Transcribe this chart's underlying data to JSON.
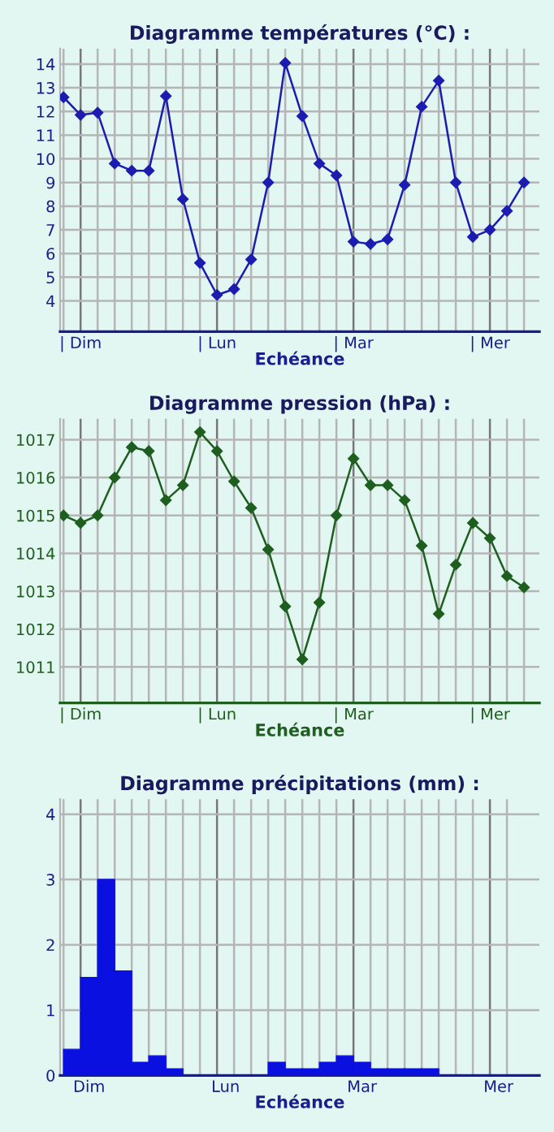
{
  "chart_data": [
    {
      "type": "line",
      "title": "Diagramme températures (°C) :",
      "xlabel": "Echéance",
      "categories": [
        null,
        "| Dim",
        null,
        null,
        null,
        null,
        null,
        null,
        null,
        "| Lun",
        null,
        null,
        null,
        null,
        null,
        null,
        null,
        "| Mar",
        null,
        null,
        null,
        null,
        null,
        null,
        null,
        "| Mer",
        null,
        null
      ],
      "series": [
        {
          "color": "#1c1cb0",
          "values": [
            12.6,
            11.85,
            11.95,
            9.8,
            9.5,
            9.5,
            12.65,
            8.3,
            5.6,
            4.25,
            4.5,
            5.75,
            9.0,
            14.05,
            11.8,
            9.8,
            9.3,
            6.5,
            6.4,
            6.6,
            8.9,
            12.2,
            13.3,
            9.0,
            6.7,
            7.0,
            7.8,
            9.0
          ]
        }
      ],
      "ylim": [
        2.7,
        14.65
      ],
      "yticks": [
        4,
        5,
        6,
        7,
        8,
        9,
        10,
        11,
        12,
        13,
        14
      ],
      "grid": true,
      "marker": "diamond",
      "line_style": "solid"
    },
    {
      "type": "line",
      "title": "Diagramme pression (hPa) :",
      "xlabel": "Echéance",
      "categories": [
        null,
        "| Dim",
        null,
        null,
        null,
        null,
        null,
        null,
        null,
        "| Lun",
        null,
        null,
        null,
        null,
        null,
        null,
        null,
        "| Mar",
        null,
        null,
        null,
        null,
        null,
        null,
        null,
        "| Mer",
        null,
        null
      ],
      "series": [
        {
          "color": "#1e5e1e",
          "values": [
            1015.0,
            1014.8,
            1015.0,
            1016.0,
            1016.8,
            1016.7,
            1015.4,
            1015.8,
            1017.2,
            1016.7,
            1015.9,
            1015.2,
            1014.1,
            1012.6,
            1011.2,
            1012.7,
            1015.0,
            1016.5,
            1015.8,
            1015.8,
            1015.4,
            1014.2,
            1012.4,
            1013.7,
            1014.8,
            1014.4,
            1013.4,
            1013.1
          ]
        }
      ],
      "ylim": [
        1010.05,
        1017.55
      ],
      "yticks": [
        1011,
        1012,
        1013,
        1014,
        1015,
        1016,
        1017
      ],
      "grid": true,
      "marker": "diamond",
      "line_style": "solid"
    },
    {
      "type": "bar",
      "title": "Diagramme précipitations (mm) :",
      "xlabel": "Echéance",
      "categories": [
        null,
        "Dim",
        null,
        null,
        null,
        null,
        null,
        null,
        null,
        "Lun",
        null,
        null,
        null,
        null,
        null,
        null,
        null,
        "Mar",
        null,
        null,
        null,
        null,
        null,
        null,
        null,
        "Mer",
        null
      ],
      "series": [
        {
          "color": "#0a10e0",
          "values": [
            0.4,
            1.5,
            3.0,
            1.6,
            0.2,
            0.3,
            0.1,
            0,
            0,
            0,
            0,
            0,
            0.2,
            0.1,
            0.1,
            0.2,
            0.3,
            0.2,
            0.1,
            0.1,
            0.1,
            0.1,
            0,
            0,
            0,
            0,
            0
          ]
        }
      ],
      "ylim": [
        0,
        4.23
      ],
      "yticks": [
        0,
        1,
        2,
        3,
        4
      ],
      "grid": true
    }
  ]
}
